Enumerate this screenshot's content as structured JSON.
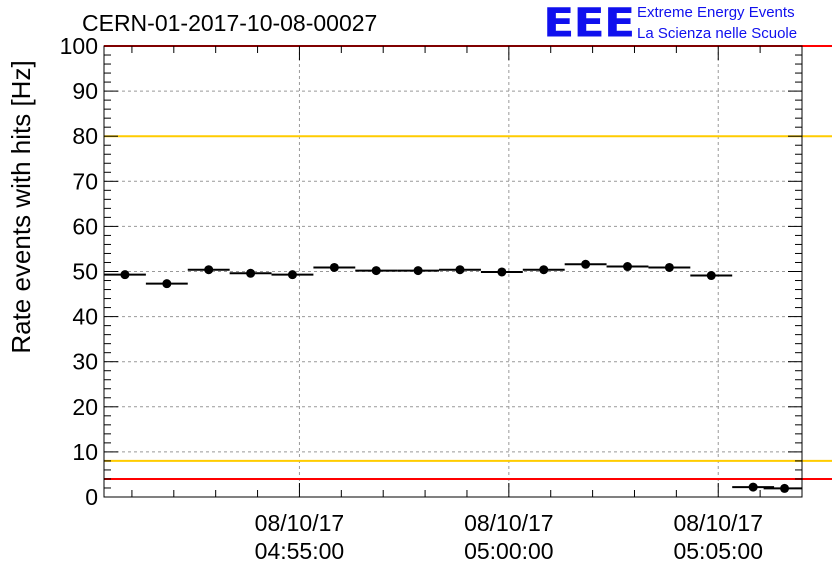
{
  "header": {
    "run_label": "CERN-01-2017-10-08-00027",
    "logo_text": "EEE",
    "logo_line1": "Extreme Energy Events",
    "logo_line2": "La Scienza nelle Scuole",
    "logo_color": "#1010ee"
  },
  "chart_data": {
    "type": "scatter",
    "ylabel": "Rate events with hits [Hz]",
    "ylim": [
      0,
      100
    ],
    "yticks": [
      0,
      10,
      20,
      30,
      40,
      50,
      60,
      70,
      80,
      90,
      100
    ],
    "xlim": [
      "08/10/17 04:50:20",
      "08/10/17 05:07:00"
    ],
    "xticks": [
      {
        "time": "04:55:00",
        "date": "08/10/17",
        "time_label": "04:55:00"
      },
      {
        "time": "05:00:00",
        "date": "08/10/17",
        "time_label": "05:00:00"
      },
      {
        "time": "05:05:00",
        "date": "08/10/17",
        "time_label": "05:05:00"
      }
    ],
    "grid": true,
    "threshold_lines": [
      {
        "y": 100,
        "color": "#ff0000"
      },
      {
        "y": 80,
        "color": "#ffcc00"
      },
      {
        "y": 8,
        "color": "#ffcc00"
      },
      {
        "y": 4,
        "color": "#ff0000"
      }
    ],
    "bin_width_s": 60,
    "series": [
      {
        "color": "#000000",
        "points": [
          {
            "t": "04:50:50",
            "y": 49.3
          },
          {
            "t": "04:51:50",
            "y": 47.3
          },
          {
            "t": "04:52:50",
            "y": 50.4
          },
          {
            "t": "04:53:50",
            "y": 49.6
          },
          {
            "t": "04:54:50",
            "y": 49.3
          },
          {
            "t": "04:55:50",
            "y": 50.9
          },
          {
            "t": "04:56:50",
            "y": 50.2
          },
          {
            "t": "04:57:50",
            "y": 50.2
          },
          {
            "t": "04:58:50",
            "y": 50.4
          },
          {
            "t": "04:59:50",
            "y": 49.9
          },
          {
            "t": "05:00:50",
            "y": 50.4
          },
          {
            "t": "05:01:50",
            "y": 51.6
          },
          {
            "t": "05:02:50",
            "y": 51.1
          },
          {
            "t": "05:03:50",
            "y": 50.9
          },
          {
            "t": "05:04:50",
            "y": 49.1
          },
          {
            "t": "05:05:50",
            "y": 2.2
          },
          {
            "t": "05:06:35",
            "y": 1.9
          }
        ]
      }
    ]
  }
}
